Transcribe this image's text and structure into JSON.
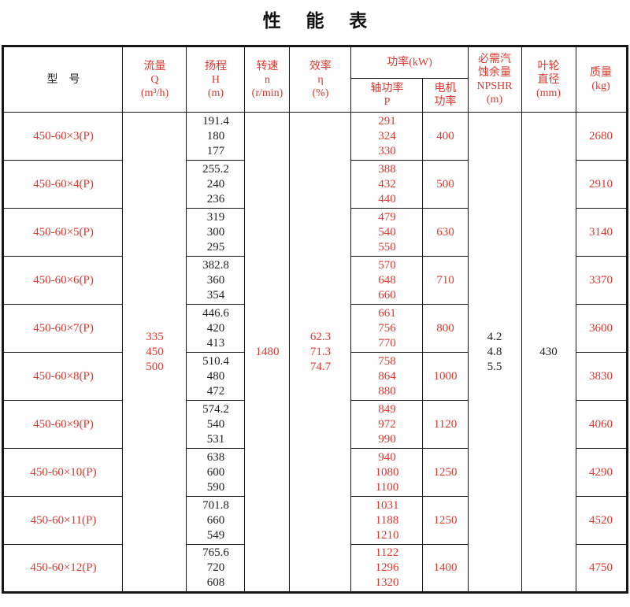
{
  "title": "性 能 表",
  "colors": {
    "accent_red": "#e0372e",
    "text_black": "#222222",
    "border_black": "#161616"
  },
  "header": {
    "model": "型　号",
    "flow": [
      "流量",
      "Q",
      "(m³/h)"
    ],
    "head": [
      "扬程",
      "H",
      "(m)"
    ],
    "speed": [
      "转速",
      "n",
      "(r/min)"
    ],
    "efficiency": [
      "效率",
      "η",
      "(%)"
    ],
    "power_group": "功率(kW)",
    "shaft_power": [
      "轴功率",
      "P"
    ],
    "motor_power": [
      "电机",
      "功率"
    ],
    "npshr": [
      "必需汽",
      "蚀余量",
      "NPSHR",
      "(m)"
    ],
    "impeller": [
      "叶轮",
      "直径",
      "(mm)"
    ],
    "mass": [
      "质量",
      "(kg)"
    ]
  },
  "merged": {
    "flow_values": [
      "335",
      "450",
      "500"
    ],
    "speed_value": "1480",
    "efficiency_values": [
      "62.3",
      "71.3",
      "74.7"
    ],
    "npshr_values": [
      "4.2",
      "4.8",
      "5.5"
    ],
    "impeller_value": "430"
  },
  "rows": [
    {
      "model": "450-60×3(P)",
      "head": [
        "191.4",
        "180",
        "177"
      ],
      "shaft": [
        "291",
        "324",
        "330"
      ],
      "motor": "400",
      "mass": "2680"
    },
    {
      "model": "450-60×4(P)",
      "head": [
        "255.2",
        "240",
        "236"
      ],
      "shaft": [
        "388",
        "432",
        "440"
      ],
      "motor": "500",
      "mass": "2910"
    },
    {
      "model": "450-60×5(P)",
      "head": [
        "319",
        "300",
        "295"
      ],
      "shaft": [
        "479",
        "540",
        "550"
      ],
      "motor": "630",
      "mass": "3140"
    },
    {
      "model": "450-60×6(P)",
      "head": [
        "382.8",
        "360",
        "354"
      ],
      "shaft": [
        "570",
        "648",
        "660"
      ],
      "motor": "710",
      "mass": "3370"
    },
    {
      "model": "450-60×7(P)",
      "head": [
        "446.6",
        "420",
        "413"
      ],
      "shaft": [
        "661",
        "756",
        "770"
      ],
      "motor": "800",
      "mass": "3600"
    },
    {
      "model": "450-60×8(P)",
      "head": [
        "510.4",
        "480",
        "472"
      ],
      "shaft": [
        "758",
        "864",
        "880"
      ],
      "motor": "1000",
      "mass": "3830"
    },
    {
      "model": "450-60×9(P)",
      "head": [
        "574.2",
        "540",
        "531"
      ],
      "shaft": [
        "849",
        "972",
        "990"
      ],
      "motor": "1120",
      "mass": "4060"
    },
    {
      "model": "450-60×10(P)",
      "head": [
        "638",
        "600",
        "590"
      ],
      "shaft": [
        "940",
        "1080",
        "1100"
      ],
      "motor": "1250",
      "mass": "4290"
    },
    {
      "model": "450-60×11(P)",
      "head": [
        "701.8",
        "660",
        "549"
      ],
      "shaft": [
        "1031",
        "1188",
        "1210"
      ],
      "motor": "1250",
      "mass": "4520"
    },
    {
      "model": "450-60×12(P)",
      "head": [
        "765.6",
        "720",
        "608"
      ],
      "shaft": [
        "1122",
        "1296",
        "1320"
      ],
      "motor": "1400",
      "mass": "4750"
    }
  ]
}
